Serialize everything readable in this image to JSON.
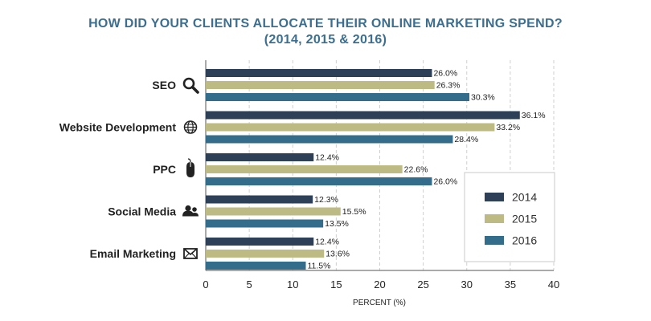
{
  "chart_data": {
    "type": "bar",
    "orientation": "horizontal",
    "title_line1": "HOW DID YOUR CLIENTS ALLOCATE THEIR ONLINE MARKETING SPEND?",
    "title_line2": "(2014, 2015 & 2016)",
    "xlabel": "PERCENT (%)",
    "xlim": [
      0,
      40
    ],
    "xticks": [
      0,
      5,
      10,
      15,
      20,
      25,
      30,
      35,
      40
    ],
    "grid": "vertical dashed",
    "legend_position": "bottom-right",
    "categories": [
      "SEO",
      "Website Development",
      "PPC",
      "Social Media",
      "Email Marketing"
    ],
    "category_icons": [
      "magnifier-icon",
      "globe-icon",
      "mouse-icon",
      "users-icon",
      "envelope-icon"
    ],
    "series": [
      {
        "name": "2014",
        "color": "#2e3f58",
        "values": [
          26.0,
          36.1,
          12.4,
          12.3,
          12.4
        ]
      },
      {
        "name": "2015",
        "color": "#bdbb83",
        "values": [
          26.3,
          33.2,
          22.6,
          15.5,
          13.6
        ]
      },
      {
        "name": "2016",
        "color": "#346d8b",
        "values": [
          30.3,
          28.4,
          26.0,
          13.5,
          11.5
        ]
      }
    ]
  }
}
